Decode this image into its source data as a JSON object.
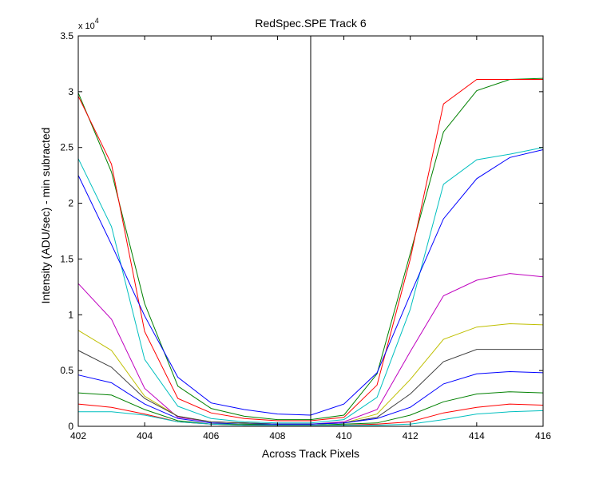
{
  "chart_data": {
    "type": "line",
    "title": "RedSpec.SPE   Track 6",
    "xlabel": "Across Track Pixels",
    "ylabel": "Intensity (ADU/sec) - min subracted",
    "y_multiplier_label": "x 10",
    "y_multiplier_exponent": "4",
    "xlim": [
      402,
      416
    ],
    "ylim": [
      0,
      35000
    ],
    "xticks": [
      402,
      404,
      406,
      408,
      410,
      412,
      414,
      416
    ],
    "yticks": [
      0,
      5000,
      10000,
      15000,
      20000,
      25000,
      30000,
      35000
    ],
    "ytick_labels": [
      "0",
      "0.5",
      "1",
      "1.5",
      "2",
      "2.5",
      "3",
      "3.5"
    ],
    "grid": false,
    "legend": false,
    "vline_x": 409,
    "x": [
      402,
      403,
      404,
      405,
      406,
      407,
      408,
      409,
      410,
      411,
      412,
      413,
      414,
      415,
      416
    ],
    "series": [
      {
        "color": "#008000",
        "values": [
          29900,
          22800,
          11000,
          3600,
          1600,
          900,
          600,
          600,
          1000,
          4700,
          15500,
          26400,
          30100,
          31100,
          31200
        ]
      },
      {
        "color": "#ff0000",
        "values": [
          29600,
          23500,
          8500,
          2500,
          1200,
          700,
          500,
          500,
          800,
          3700,
          15000,
          28900,
          31100,
          31100,
          31100
        ]
      },
      {
        "color": "#00bfbf",
        "values": [
          24000,
          17900,
          6000,
          1800,
          700,
          400,
          300,
          300,
          600,
          2600,
          10500,
          21700,
          23900,
          24400,
          25000
        ]
      },
      {
        "color": "#0000ff",
        "values": [
          22500,
          16300,
          9900,
          4400,
          2100,
          1500,
          1100,
          1000,
          2000,
          4800,
          11800,
          18600,
          22200,
          24100,
          24800
        ]
      },
      {
        "color": "#bf00bf",
        "values": [
          12800,
          9600,
          3400,
          800,
          400,
          300,
          200,
          200,
          400,
          1500,
          6700,
          11700,
          13100,
          13700,
          13400
        ]
      },
      {
        "color": "#bfbf00",
        "values": [
          8600,
          6800,
          2700,
          900,
          400,
          300,
          200,
          200,
          300,
          1100,
          4200,
          7800,
          8900,
          9200,
          9100
        ]
      },
      {
        "color": "#404040",
        "values": [
          6800,
          5300,
          2500,
          900,
          400,
          300,
          200,
          200,
          300,
          800,
          2900,
          5800,
          6900,
          6900,
          6900
        ]
      },
      {
        "color": "#0000ff",
        "values": [
          4600,
          3900,
          2000,
          700,
          300,
          200,
          200,
          200,
          300,
          700,
          1700,
          3800,
          4700,
          4900,
          4800
        ]
      },
      {
        "color": "#008000",
        "values": [
          3000,
          2800,
          1500,
          500,
          200,
          200,
          100,
          100,
          200,
          300,
          1000,
          2200,
          2900,
          3100,
          3000
        ]
      },
      {
        "color": "#ff0000",
        "values": [
          2000,
          1700,
          1100,
          400,
          200,
          100,
          100,
          100,
          100,
          200,
          400,
          1200,
          1700,
          2000,
          1900
        ]
      },
      {
        "color": "#00bfbf",
        "values": [
          1300,
          1300,
          1000,
          400,
          200,
          100,
          100,
          100,
          100,
          100,
          200,
          600,
          1100,
          1300,
          1400
        ]
      }
    ]
  }
}
